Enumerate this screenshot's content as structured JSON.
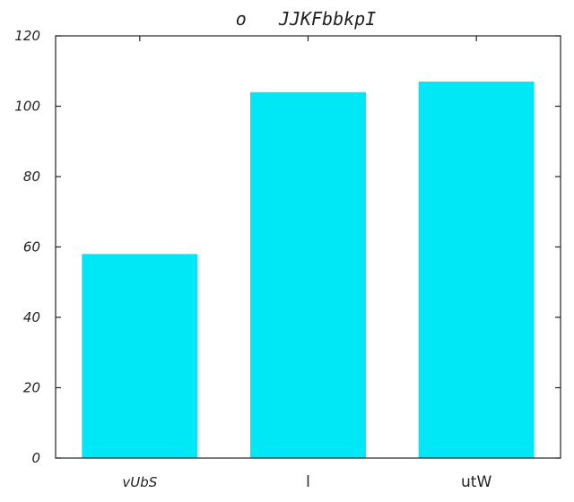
{
  "chart_data": {
    "type": "bar",
    "title": "o   JJKFbbkpI",
    "categories": [
      "vUbS",
      "l",
      "utW"
    ],
    "values": [
      58,
      104,
      107
    ],
    "xlabel": "",
    "ylabel": "",
    "ylim": [
      0,
      120
    ],
    "yticks": [
      0,
      20,
      40,
      60,
      80,
      100,
      120
    ],
    "bar_color": "#00E8F5",
    "grid": false,
    "legend": "none"
  }
}
